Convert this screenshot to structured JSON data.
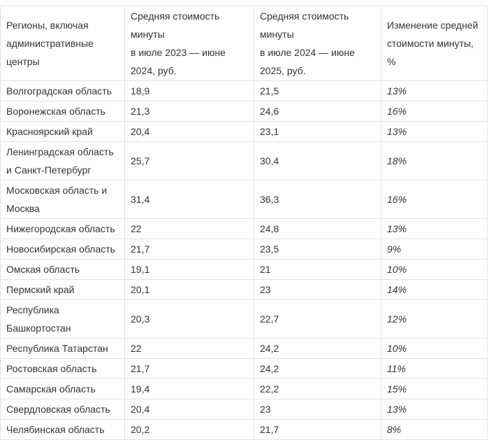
{
  "chart_data": {
    "type": "table",
    "title": "",
    "columns": [
      "Регионы, включая административные центры",
      "Средняя стоимость минуты в июле 2023 — июне 2024, руб.",
      "Средняя стоимость минуты в июле 2024 — июне 2025, руб.",
      "Изменение средней стоимости минуты, %"
    ],
    "rows": [
      {
        "region": "Волгоградская область",
        "avg_cost_jul2023_jun2024_rub": 18.9,
        "avg_cost_jul2024_jun2025_rub": 21.5,
        "change_percent": 13
      },
      {
        "region": "Воронежская область",
        "avg_cost_jul2023_jun2024_rub": 21.3,
        "avg_cost_jul2024_jun2025_rub": 24.6,
        "change_percent": 16
      },
      {
        "region": "Красноярский край",
        "avg_cost_jul2023_jun2024_rub": 20.4,
        "avg_cost_jul2024_jun2025_rub": 23.1,
        "change_percent": 13
      },
      {
        "region": "Ленинградская область и Санкт-Петербург",
        "avg_cost_jul2023_jun2024_rub": 25.7,
        "avg_cost_jul2024_jun2025_rub": 30.4,
        "change_percent": 18
      },
      {
        "region": "Московская область и Москва",
        "avg_cost_jul2023_jun2024_rub": 31.4,
        "avg_cost_jul2024_jun2025_rub": 36.3,
        "change_percent": 16
      },
      {
        "region": "Нижегородская область",
        "avg_cost_jul2023_jun2024_rub": 22,
        "avg_cost_jul2024_jun2025_rub": 24.8,
        "change_percent": 13
      },
      {
        "region": "Новосибирская область",
        "avg_cost_jul2023_jun2024_rub": 21.7,
        "avg_cost_jul2024_jun2025_rub": 23.5,
        "change_percent": 9
      },
      {
        "region": "Омская область",
        "avg_cost_jul2023_jun2024_rub": 19.1,
        "avg_cost_jul2024_jun2025_rub": 21,
        "change_percent": 10
      },
      {
        "region": "Пермский край",
        "avg_cost_jul2023_jun2024_rub": 20.1,
        "avg_cost_jul2024_jun2025_rub": 23,
        "change_percent": 14
      },
      {
        "region": "Республика Башкортостан",
        "avg_cost_jul2023_jun2024_rub": 20.3,
        "avg_cost_jul2024_jun2025_rub": 22.7,
        "change_percent": 12
      },
      {
        "region": "Республика Татарстан",
        "avg_cost_jul2023_jun2024_rub": 22,
        "avg_cost_jul2024_jun2025_rub": 24.2,
        "change_percent": 10
      },
      {
        "region": "Ростовская область",
        "avg_cost_jul2023_jun2024_rub": 21.7,
        "avg_cost_jul2024_jun2025_rub": 24.2,
        "change_percent": 11
      },
      {
        "region": "Самарская область",
        "avg_cost_jul2023_jun2024_rub": 19.4,
        "avg_cost_jul2024_jun2025_rub": 22.2,
        "change_percent": 15
      },
      {
        "region": "Свердловская область",
        "avg_cost_jul2023_jun2024_rub": 20.4,
        "avg_cost_jul2024_jun2025_rub": 23,
        "change_percent": 13
      },
      {
        "region": "Челябинская область",
        "avg_cost_jul2023_jun2024_rub": 20.2,
        "avg_cost_jul2024_jun2025_rub": 21.7,
        "change_percent": 8
      }
    ],
    "layout": {
      "grid": true,
      "border_color": "#e2e2e2",
      "text_color": "#333333",
      "change_column_style": "italic"
    }
  },
  "table": {
    "header": {
      "regions": "Регионы, включая\nадминистративные центры",
      "period1": "Средняя стоимость минуты\nв июле 2023 — июне 2024, руб.",
      "period2": "Средняя стоимость минуты\nв июле 2024 — июне 2025, руб.",
      "change": "Изменение средней\nстоимости минуты, %"
    },
    "rows": [
      {
        "region": "Волгоградская область",
        "period1": "18,9",
        "period2": "21,5",
        "change": "13%"
      },
      {
        "region": "Воронежская область",
        "period1": "21,3",
        "period2": "24,6",
        "change": "16%"
      },
      {
        "region": "Красноярский край",
        "period1": "20,4",
        "period2": "23,1",
        "change": "13%"
      },
      {
        "region": "Ленинградская область\nи Санкт-Петербург",
        "period1": "25,7",
        "period2": "30,4",
        "change": "18%"
      },
      {
        "region": "Московская область и Москва",
        "period1": "31,4",
        "period2": "36,3",
        "change": "16%"
      },
      {
        "region": "Нижегородская область",
        "period1": "22",
        "period2": "24,8",
        "change": "13%"
      },
      {
        "region": "Новосибирская область",
        "period1": "21,7",
        "period2": "23,5",
        "change": "9%"
      },
      {
        "region": "Омская область",
        "period1": "19,1",
        "period2": "21",
        "change": "10%"
      },
      {
        "region": "Пермский край",
        "period1": "20,1",
        "period2": "23",
        "change": "14%"
      },
      {
        "region": "Республика Башкортостан",
        "period1": "20,3",
        "period2": "22,7",
        "change": "12%"
      },
      {
        "region": "Республика Татарстан",
        "period1": "22",
        "period2": "24,2",
        "change": "10%"
      },
      {
        "region": "Ростовская область",
        "period1": "21,7",
        "period2": "24,2",
        "change": "11%"
      },
      {
        "region": "Самарская область",
        "period1": "19,4",
        "period2": "22,2",
        "change": "15%"
      },
      {
        "region": "Свердловская область",
        "period1": "20,4",
        "period2": "23",
        "change": "13%"
      },
      {
        "region": "Челябинская область",
        "period1": "20,2",
        "period2": "21,7",
        "change": "8%"
      }
    ]
  }
}
